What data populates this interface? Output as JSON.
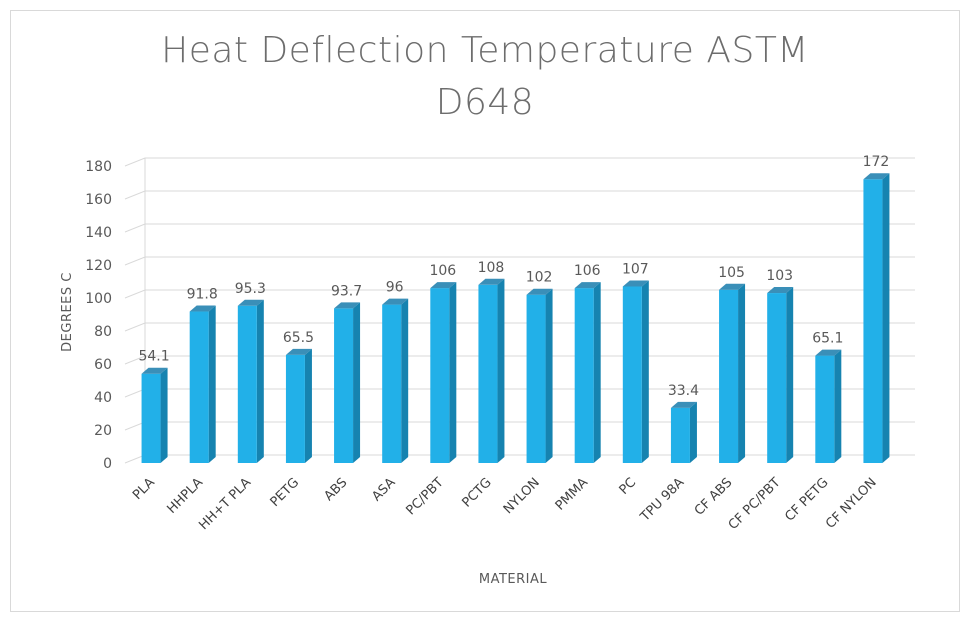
{
  "chart_data": {
    "type": "bar",
    "title_lines": [
      "Heat Deflection Temperature ASTM",
      "D648"
    ],
    "xlabel": "MATERIAL",
    "ylabel": "DEGREES C",
    "categories": [
      "PLA",
      "HHPLA",
      "HH+T PLA",
      "PETG",
      "ABS",
      "ASA",
      "PC/PBT",
      "PCTG",
      "NYLON",
      "PMMA",
      "PC",
      "TPU 98A",
      "CF ABS",
      "CF PC/PBT",
      "CF PETG",
      "CF NYLON"
    ],
    "values": [
      54.1,
      91.8,
      95.3,
      65.5,
      93.7,
      96,
      106,
      108,
      102,
      106,
      107,
      33.4,
      105,
      103,
      65.1,
      172
    ],
    "value_labels": [
      "54.1",
      "91.8",
      "95.3",
      "65.5",
      "93.7",
      "96",
      "106",
      "108",
      "102",
      "106",
      "107",
      "33.4",
      "105",
      "103",
      "65.1",
      "172"
    ],
    "yticks": [
      "0",
      "20",
      "40",
      "60",
      "80",
      "100",
      "120",
      "140",
      "160",
      "180"
    ],
    "ylim": [
      0,
      180
    ],
    "grid": true,
    "bar_style": "3d-column",
    "colors": {
      "bar_front": "#22b0e8",
      "bar_side": "#1683b0",
      "bar_top": "#3a8fb8",
      "grid": "#d9d9d9",
      "text": "#595959"
    }
  }
}
